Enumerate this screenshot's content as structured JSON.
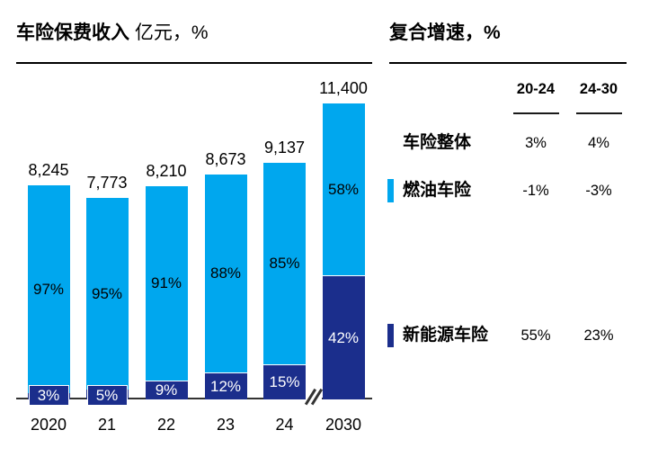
{
  "chart": {
    "title": "车险保费收入",
    "unit": "亿元，%"
  },
  "table": {
    "title": "复合增速，%",
    "columns": [
      "20-24",
      "24-30"
    ],
    "rows": [
      {
        "label": "车险整体",
        "marker": "none",
        "values": [
          "3%",
          "4%"
        ]
      },
      {
        "label": "燃油车险",
        "marker": "fuel",
        "values": [
          "-1%",
          "-3%"
        ]
      },
      {
        "label": "新能源车险",
        "marker": "nev",
        "values": [
          "55%",
          "23%"
        ]
      }
    ]
  },
  "colors": {
    "fuel_light_blue": "#00A7EE",
    "nev_dark_blue": "#1B2E8C",
    "axis": "#333333",
    "text": "#000000"
  },
  "chart_data": {
    "type": "bar",
    "stacked": true,
    "title": "车险保费收入 亿元，%",
    "categories": [
      "2020",
      "21",
      "22",
      "23",
      "24",
      "2030"
    ],
    "totals": [
      8245,
      7773,
      8210,
      8673,
      9137,
      11400
    ],
    "total_labels": [
      "8,245",
      "7,773",
      "8,210",
      "8,673",
      "9,137",
      "11,400"
    ],
    "series": [
      {
        "name": "燃油车险",
        "color": "#00A7EE",
        "share_pct": [
          97,
          95,
          91,
          88,
          85,
          58
        ],
        "share_labels": [
          "97%",
          "95%",
          "91%",
          "88%",
          "85%",
          "58%"
        ]
      },
      {
        "name": "新能源车险",
        "color": "#1B2E8C",
        "share_pct": [
          3,
          5,
          9,
          12,
          15,
          42
        ],
        "share_labels": [
          "3%",
          "5%",
          "9%",
          "12%",
          "15%",
          "42%"
        ]
      }
    ],
    "ylabel": "亿元",
    "axis_break_between": [
      "24",
      "2030"
    ],
    "grid": false,
    "legend_position": "right-side-table",
    "side_table": {
      "title": "复合增速，%",
      "columns": [
        "20-24",
        "24-30"
      ],
      "rows": [
        {
          "label": "车险整体",
          "values": [
            "3%",
            "4%"
          ]
        },
        {
          "label": "燃油车险",
          "values": [
            "-1%",
            "-3%"
          ]
        },
        {
          "label": "新能源车险",
          "values": [
            "55%",
            "23%"
          ]
        }
      ]
    }
  }
}
